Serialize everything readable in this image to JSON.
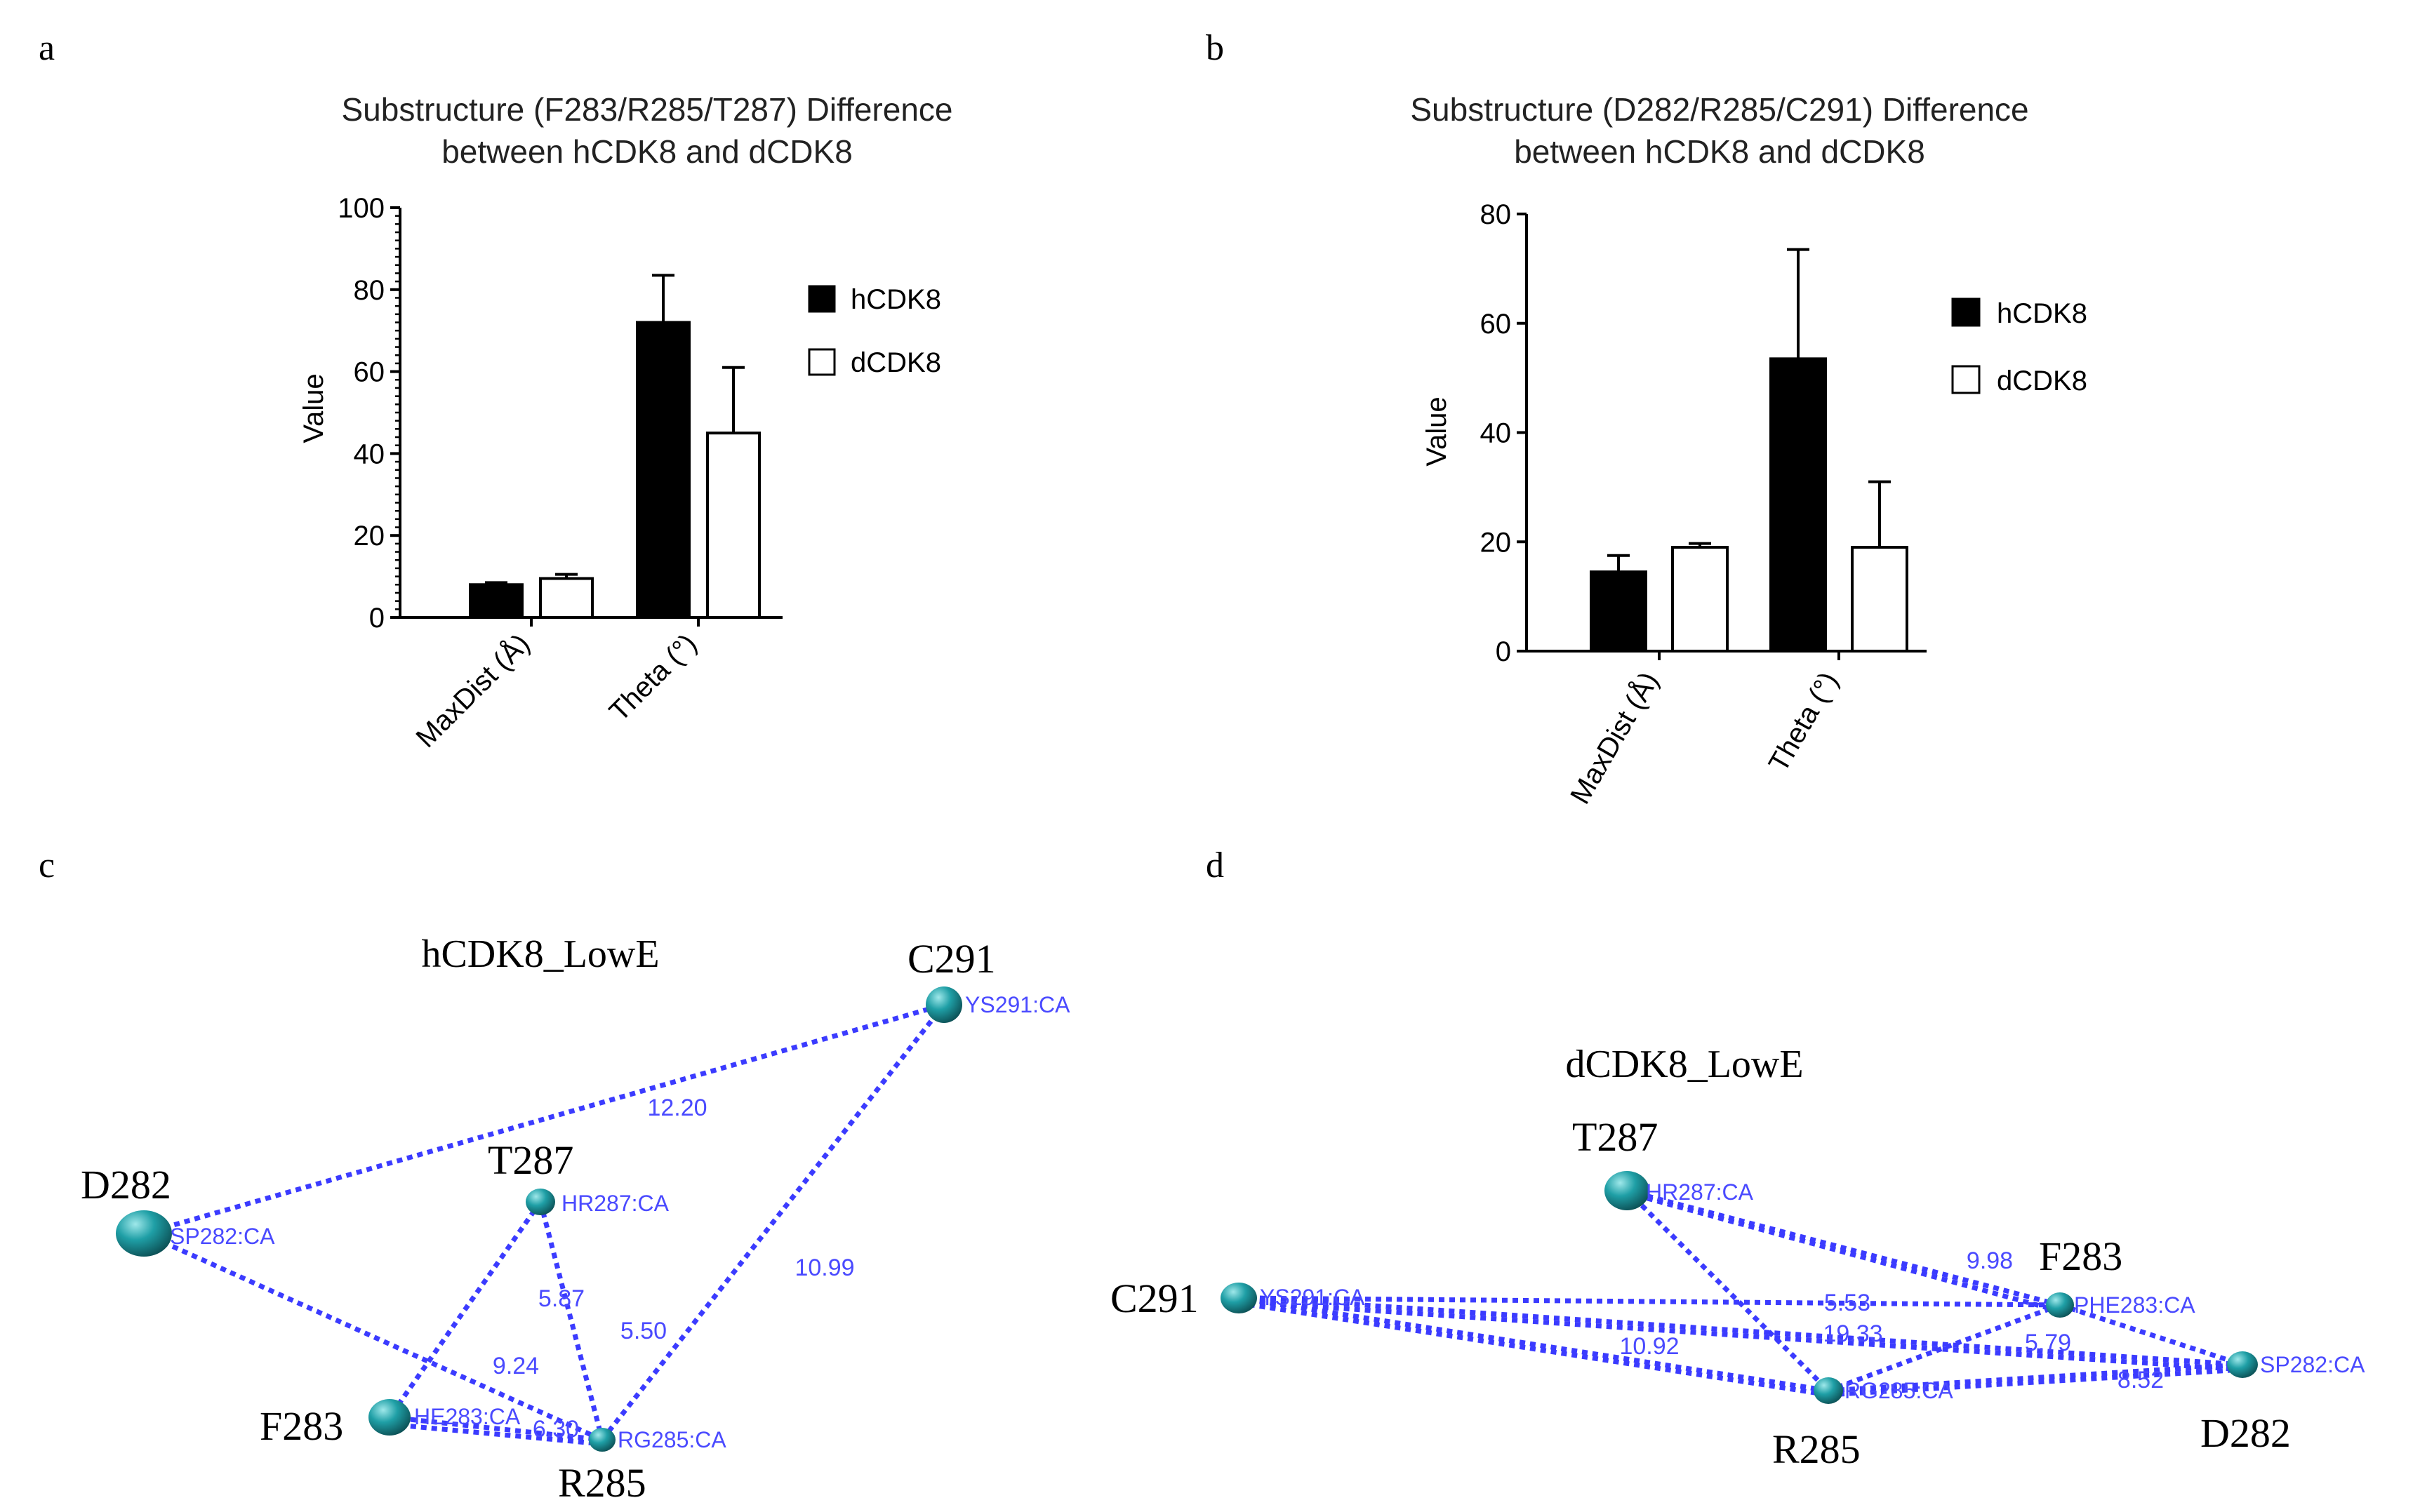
{
  "panels": {
    "a": "a",
    "b": "b",
    "c": "c",
    "d": "d"
  },
  "colors": {
    "hCDK8": "#000000",
    "dCDK8": "#ffffff",
    "bond_line": "#3b3bff",
    "atom": "#1a9aa0"
  },
  "chart_data": [
    {
      "id": "a",
      "type": "bar",
      "title_lines": [
        "Substructure (F283/R285/T287) Difference",
        "between hCDK8 and dCDK8"
      ],
      "xlabel": "",
      "ylabel": "Value",
      "categories": [
        "MaxDist (Å)",
        "Theta (°)"
      ],
      "series": [
        {
          "name": "hCDK8",
          "values": [
            8,
            72
          ],
          "errors": [
            0.5,
            11.5
          ]
        },
        {
          "name": "dCDK8",
          "values": [
            9.5,
            45
          ],
          "errors": [
            1.0,
            16
          ]
        }
      ],
      "ylim": [
        0,
        100
      ],
      "yticks": [
        0,
        20,
        40,
        60,
        80,
        100
      ],
      "legend_position": "right",
      "grid": false
    },
    {
      "id": "b",
      "type": "bar",
      "title_lines": [
        "Substructure (D282/R285/C291) Difference",
        "between hCDK8 and dCDK8"
      ],
      "xlabel": "",
      "ylabel": "Value",
      "categories": [
        "MaxDist (Å)",
        "Theta (°)"
      ],
      "series": [
        {
          "name": "hCDK8",
          "values": [
            14.5,
            53.5
          ],
          "errors": [
            3,
            20
          ]
        },
        {
          "name": "dCDK8",
          "values": [
            19,
            19
          ],
          "errors": [
            0.7,
            12
          ]
        }
      ],
      "ylim": [
        0,
        80
      ],
      "yticks": [
        0,
        20,
        40,
        60,
        80
      ],
      "legend_position": "right",
      "grid": false
    }
  ],
  "structures": {
    "c": {
      "title": "hCDK8_LowE",
      "residues": [
        {
          "id": "D282",
          "label": "D282",
          "atom_label": "SP282:CA"
        },
        {
          "id": "T287",
          "label": "T287",
          "atom_label": "HR287:CA"
        },
        {
          "id": "F283",
          "label": "F283",
          "atom_label": "HE283:CA"
        },
        {
          "id": "R285",
          "label": "R285",
          "atom_label": "RG285:CA"
        },
        {
          "id": "C291",
          "label": "C291",
          "atom_label": "YS291:CA"
        }
      ],
      "distances": [
        {
          "from": "D282",
          "to": "C291",
          "value": "12.20"
        },
        {
          "from": "C291",
          "to": "R285",
          "value": "10.99"
        },
        {
          "from": "D282",
          "to": "R285",
          "value": "9.24"
        },
        {
          "from": "T287",
          "to": "F283",
          "value": "5.87"
        },
        {
          "from": "T287",
          "to": "R285",
          "value": "5.50"
        },
        {
          "from": "F283",
          "to": "R285",
          "value": "6.30"
        }
      ]
    },
    "d": {
      "title": "dCDK8_LowE",
      "residues": [
        {
          "id": "T287",
          "label": "T287",
          "atom_label": "HR287:CA"
        },
        {
          "id": "C291",
          "label": "C291",
          "atom_label": "YS291:CA"
        },
        {
          "id": "F283",
          "label": "F283",
          "atom_label": "PHE283:CA"
        },
        {
          "id": "R285",
          "label": "R285",
          "atom_label": "RG285:CA"
        },
        {
          "id": "D282",
          "label": "D282",
          "atom_label": "SP282:CA"
        }
      ],
      "distances": [
        {
          "from": "T287",
          "to": "F283",
          "value": "9.98"
        },
        {
          "from": "T287",
          "to": "R285",
          "value": "5.53"
        },
        {
          "from": "C291",
          "to": "D282",
          "value": "19.33"
        },
        {
          "from": "C291",
          "to": "R285",
          "value": "10.92"
        },
        {
          "from": "F283",
          "to": "R285",
          "value": "5.79"
        },
        {
          "from": "R285",
          "to": "D282",
          "value": "8.52"
        }
      ]
    }
  }
}
